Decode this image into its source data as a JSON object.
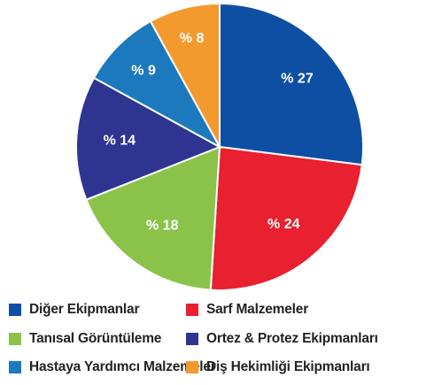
{
  "chart_data": {
    "type": "pie",
    "slices": [
      {
        "label": "Diğer Ekipmanlar",
        "value": 27,
        "value_label": "% 27",
        "color": "#0f4fa3"
      },
      {
        "label": "Sarf Malzemeler",
        "value": 24,
        "value_label": "% 24",
        "color": "#e8202f"
      },
      {
        "label": "Tanısal Görüntüleme",
        "value": 18,
        "value_label": "% 18",
        "color": "#8bc34a"
      },
      {
        "label": "Ortez & Protez Ekipmanları",
        "value": 14,
        "value_label": "% 14",
        "color": "#2e3591"
      },
      {
        "label": "Hastaya Yardımcı Malzemeler",
        "value": 9,
        "value_label": "% 9",
        "color": "#1d79bd"
      },
      {
        "label": "Diş Hekimliği Ekipmanları",
        "value": 8,
        "value_label": "% 8",
        "color": "#f39a2f"
      }
    ],
    "legend_order": [
      0,
      1,
      2,
      3,
      4,
      5
    ],
    "legend_placement": "bottom"
  }
}
